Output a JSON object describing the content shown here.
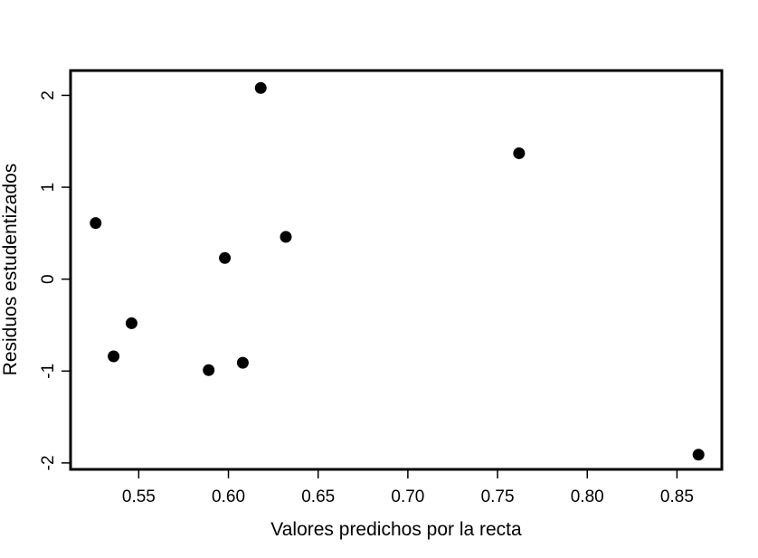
{
  "chart_data": {
    "type": "scatter",
    "title": "",
    "xlabel": "Valores predichos por la recta",
    "ylabel": "Residuos estudentizados",
    "xlim": [
      0.512,
      0.875
    ],
    "ylim": [
      -2.07,
      2.27
    ],
    "xticks": [
      0.55,
      0.6,
      0.65,
      0.7,
      0.75,
      0.8,
      0.85
    ],
    "xtick_labels": [
      "0.55",
      "0.60",
      "0.65",
      "0.70",
      "0.75",
      "0.80",
      "0.85"
    ],
    "yticks": [
      -2,
      -1,
      0,
      1,
      2
    ],
    "ytick_labels": [
      "-2",
      "-1",
      "0",
      "1",
      "2"
    ],
    "grid": false,
    "marker_color": "#000000",
    "points": [
      {
        "x": 0.526,
        "y": 0.61
      },
      {
        "x": 0.536,
        "y": -0.84
      },
      {
        "x": 0.546,
        "y": -0.48
      },
      {
        "x": 0.589,
        "y": -0.99
      },
      {
        "x": 0.598,
        "y": 0.23
      },
      {
        "x": 0.608,
        "y": -0.91
      },
      {
        "x": 0.618,
        "y": 2.08
      },
      {
        "x": 0.632,
        "y": 0.46
      },
      {
        "x": 0.762,
        "y": 1.37
      },
      {
        "x": 0.862,
        "y": -1.91
      }
    ]
  }
}
